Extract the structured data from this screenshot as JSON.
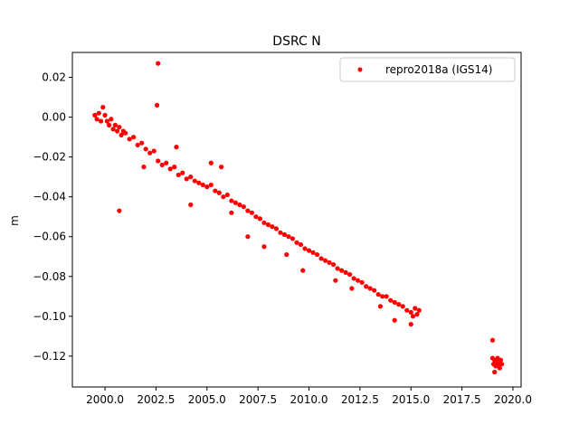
{
  "chart_data": {
    "type": "scatter",
    "title": "DSRC N",
    "xlabel": "",
    "ylabel": "m",
    "xlim": [
      1998.4,
      2020.4
    ],
    "ylim": [
      -0.1355,
      0.0325
    ],
    "grid": false,
    "legend_position": "top-right",
    "xticks": [
      2000.0,
      2002.5,
      2005.0,
      2007.5,
      2010.0,
      2012.5,
      2015.0,
      2017.5,
      2020.0
    ],
    "xtick_labels": [
      "2000.0",
      "2002.5",
      "2005.0",
      "2007.5",
      "2010.0",
      "2012.5",
      "2015.0",
      "2017.5",
      "2020.0"
    ],
    "yticks": [
      0.02,
      0.0,
      -0.02,
      -0.04,
      -0.06,
      -0.08,
      -0.1,
      -0.12
    ],
    "ytick_labels": [
      "0.02",
      "0.00",
      "−0.02",
      "−0.04",
      "−0.06",
      "−0.08",
      "−0.10",
      "−0.12"
    ],
    "series": [
      {
        "name": "repro2018a (IGS14)",
        "color": "#ff0000",
        "marker": "circle",
        "points": [
          [
            1999.5,
            0.001
          ],
          [
            1999.6,
            -0.001
          ],
          [
            1999.7,
            0.002
          ],
          [
            1999.8,
            -0.002
          ],
          [
            1999.9,
            0.005
          ],
          [
            2000.0,
            0.001
          ],
          [
            2000.1,
            -0.002
          ],
          [
            2000.2,
            -0.004
          ],
          [
            2000.3,
            -0.001
          ],
          [
            2000.4,
            -0.006
          ],
          [
            2000.5,
            -0.004
          ],
          [
            2000.6,
            -0.007
          ],
          [
            2000.7,
            -0.005
          ],
          [
            2000.8,
            -0.009
          ],
          [
            2000.9,
            -0.007
          ],
          [
            2001.0,
            -0.008
          ],
          [
            2001.2,
            -0.011
          ],
          [
            2001.4,
            -0.01
          ],
          [
            2001.6,
            -0.014
          ],
          [
            2001.8,
            -0.013
          ],
          [
            2002.0,
            -0.016
          ],
          [
            2002.2,
            -0.018
          ],
          [
            2002.4,
            -0.017
          ],
          [
            2002.6,
            -0.022
          ],
          [
            2002.8,
            -0.024
          ],
          [
            2003.0,
            -0.023
          ],
          [
            2003.2,
            -0.026
          ],
          [
            2003.4,
            -0.025
          ],
          [
            2003.6,
            -0.029
          ],
          [
            2003.8,
            -0.028
          ],
          [
            2004.0,
            -0.031
          ],
          [
            2004.2,
            -0.03
          ],
          [
            2004.4,
            -0.032
          ],
          [
            2004.6,
            -0.033
          ],
          [
            2004.8,
            -0.034
          ],
          [
            2005.0,
            -0.035
          ],
          [
            2005.2,
            -0.034
          ],
          [
            2005.4,
            -0.037
          ],
          [
            2005.6,
            -0.038
          ],
          [
            2005.8,
            -0.04
          ],
          [
            2006.0,
            -0.039
          ],
          [
            2006.2,
            -0.042
          ],
          [
            2006.4,
            -0.043
          ],
          [
            2006.6,
            -0.044
          ],
          [
            2006.8,
            -0.045
          ],
          [
            2007.0,
            -0.047
          ],
          [
            2007.2,
            -0.048
          ],
          [
            2007.4,
            -0.05
          ],
          [
            2007.6,
            -0.051
          ],
          [
            2007.8,
            -0.053
          ],
          [
            2008.0,
            -0.054
          ],
          [
            2008.2,
            -0.055
          ],
          [
            2008.4,
            -0.056
          ],
          [
            2008.6,
            -0.058
          ],
          [
            2008.8,
            -0.059
          ],
          [
            2009.0,
            -0.06
          ],
          [
            2009.2,
            -0.061
          ],
          [
            2009.4,
            -0.063
          ],
          [
            2009.6,
            -0.064
          ],
          [
            2009.8,
            -0.066
          ],
          [
            2010.0,
            -0.067
          ],
          [
            2010.2,
            -0.068
          ],
          [
            2010.4,
            -0.069
          ],
          [
            2010.6,
            -0.071
          ],
          [
            2010.8,
            -0.072
          ],
          [
            2011.0,
            -0.073
          ],
          [
            2011.2,
            -0.074
          ],
          [
            2011.4,
            -0.076
          ],
          [
            2011.6,
            -0.077
          ],
          [
            2011.8,
            -0.078
          ],
          [
            2012.0,
            -0.079
          ],
          [
            2012.2,
            -0.081
          ],
          [
            2012.4,
            -0.082
          ],
          [
            2012.6,
            -0.083
          ],
          [
            2012.8,
            -0.085
          ],
          [
            2013.0,
            -0.086
          ],
          [
            2013.2,
            -0.087
          ],
          [
            2013.4,
            -0.089
          ],
          [
            2013.6,
            -0.09
          ],
          [
            2013.8,
            -0.09
          ],
          [
            2014.0,
            -0.092
          ],
          [
            2014.2,
            -0.093
          ],
          [
            2014.4,
            -0.094
          ],
          [
            2014.6,
            -0.095
          ],
          [
            2014.8,
            -0.097
          ],
          [
            2015.0,
            -0.098
          ],
          [
            2015.1,
            -0.1
          ],
          [
            2015.2,
            -0.096
          ],
          [
            2015.3,
            -0.099
          ],
          [
            2015.4,
            -0.097
          ],
          [
            2019.0,
            -0.121
          ],
          [
            2019.05,
            -0.124
          ],
          [
            2019.1,
            -0.122
          ],
          [
            2019.15,
            -0.125
          ],
          [
            2019.2,
            -0.123
          ],
          [
            2019.25,
            -0.121
          ],
          [
            2019.3,
            -0.124
          ],
          [
            2019.35,
            -0.126
          ],
          [
            2019.4,
            -0.122
          ],
          [
            2019.45,
            -0.124
          ]
        ],
        "outliers": [
          [
            2002.6,
            0.027
          ],
          [
            2002.55,
            0.006
          ],
          [
            2000.7,
            -0.047
          ],
          [
            2004.2,
            -0.044
          ],
          [
            2005.2,
            -0.023
          ],
          [
            2005.7,
            -0.025
          ],
          [
            2007.0,
            -0.06
          ],
          [
            2007.8,
            -0.065
          ],
          [
            2009.7,
            -0.077
          ],
          [
            2011.3,
            -0.082
          ],
          [
            2013.5,
            -0.095
          ],
          [
            2014.2,
            -0.102
          ],
          [
            2015.0,
            -0.104
          ],
          [
            2019.0,
            -0.112
          ],
          [
            2019.1,
            -0.128
          ],
          [
            2001.9,
            -0.025
          ],
          [
            2003.5,
            -0.015
          ],
          [
            2012.1,
            -0.086
          ],
          [
            2008.9,
            -0.069
          ],
          [
            2006.2,
            -0.048
          ]
        ]
      }
    ]
  }
}
